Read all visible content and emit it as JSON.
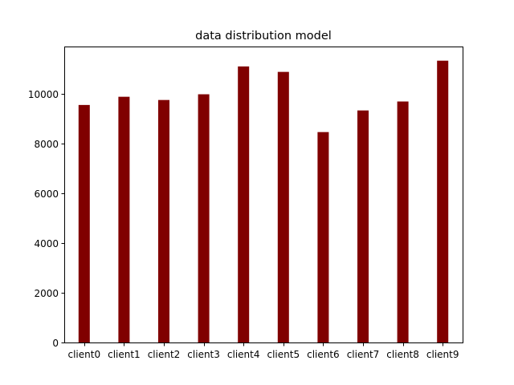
{
  "chart_data": {
    "type": "bar",
    "title": "data distribution model",
    "xlabel": "",
    "ylabel": "",
    "categories": [
      "client0",
      "client1",
      "client2",
      "client3",
      "client4",
      "client5",
      "client6",
      "client7",
      "client8",
      "client9"
    ],
    "values": [
      9550,
      9880,
      9750,
      9980,
      11100,
      10880,
      8460,
      9330,
      9690,
      11330
    ],
    "ylim": [
      0,
      11900
    ],
    "yticks": [
      0,
      2000,
      4000,
      6000,
      8000,
      10000
    ],
    "grid": false,
    "legend": "none",
    "bar_color": "#800000"
  }
}
